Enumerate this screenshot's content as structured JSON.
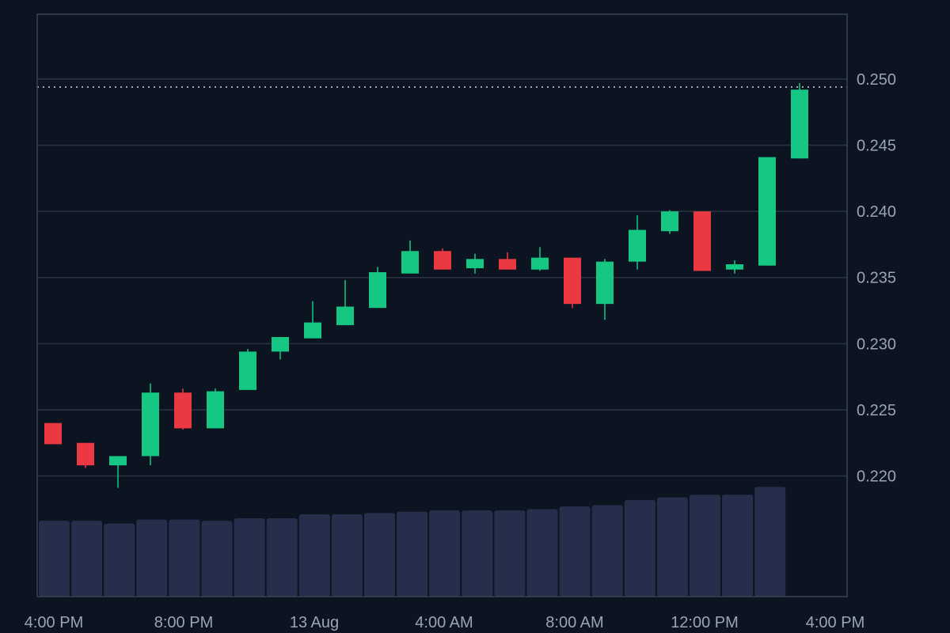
{
  "chart_data": {
    "type": "candlestick",
    "title": "",
    "xlabel": "",
    "ylabel": "",
    "y_ticks": [
      "0.220",
      "0.225",
      "0.230",
      "0.235",
      "0.240",
      "0.245",
      "0.250"
    ],
    "x_ticks": [
      "4:00 PM",
      "8:00 PM",
      "13 Aug",
      "4:00 AM",
      "8:00 AM",
      "12:00 PM",
      "4:00 PM"
    ],
    "ylim": [
      0.2171,
      0.2549
    ],
    "grid": true,
    "current_price_line": 0.2494,
    "colors": {
      "up": "#16c784",
      "down": "#ea3943",
      "volume": "#252f4b",
      "grid": "#2a3342",
      "background": "#0d1421"
    },
    "candles": [
      {
        "open": 0.224,
        "high": 0.224,
        "low": 0.2224,
        "close": 0.2224
      },
      {
        "open": 0.2225,
        "high": 0.2225,
        "low": 0.2206,
        "close": 0.2208
      },
      {
        "open": 0.2208,
        "high": 0.2215,
        "low": 0.2191,
        "close": 0.2215
      },
      {
        "open": 0.2215,
        "high": 0.227,
        "low": 0.2208,
        "close": 0.2263
      },
      {
        "open": 0.2263,
        "high": 0.2266,
        "low": 0.2235,
        "close": 0.2236
      },
      {
        "open": 0.2236,
        "high": 0.2266,
        "low": 0.2236,
        "close": 0.2264
      },
      {
        "open": 0.2265,
        "high": 0.2296,
        "low": 0.2265,
        "close": 0.2294
      },
      {
        "open": 0.2294,
        "high": 0.2305,
        "low": 0.2288,
        "close": 0.2305
      },
      {
        "open": 0.2304,
        "high": 0.2332,
        "low": 0.2304,
        "close": 0.2316
      },
      {
        "open": 0.2314,
        "high": 0.2348,
        "low": 0.2314,
        "close": 0.2328
      },
      {
        "open": 0.2327,
        "high": 0.2358,
        "low": 0.2327,
        "close": 0.2354
      },
      {
        "open": 0.2353,
        "high": 0.2378,
        "low": 0.2353,
        "close": 0.237
      },
      {
        "open": 0.237,
        "high": 0.2372,
        "low": 0.2356,
        "close": 0.2356
      },
      {
        "open": 0.2357,
        "high": 0.2368,
        "low": 0.2353,
        "close": 0.2364
      },
      {
        "open": 0.2364,
        "high": 0.2369,
        "low": 0.2356,
        "close": 0.2356
      },
      {
        "open": 0.2356,
        "high": 0.2373,
        "low": 0.2355,
        "close": 0.2365
      },
      {
        "open": 0.2365,
        "high": 0.2365,
        "low": 0.2327,
        "close": 0.233
      },
      {
        "open": 0.233,
        "high": 0.2364,
        "low": 0.2318,
        "close": 0.2362
      },
      {
        "open": 0.2362,
        "high": 0.2397,
        "low": 0.2356,
        "close": 0.2386
      },
      {
        "open": 0.2385,
        "high": 0.2401,
        "low": 0.2383,
        "close": 0.24
      },
      {
        "open": 0.24,
        "high": 0.24,
        "low": 0.2355,
        "close": 0.2355
      },
      {
        "open": 0.2356,
        "high": 0.2363,
        "low": 0.2353,
        "close": 0.236
      },
      {
        "open": 0.2359,
        "high": 0.2441,
        "low": 0.2359,
        "close": 0.2441
      },
      {
        "open": 0.244,
        "high": 0.2497,
        "low": 0.244,
        "close": 0.2492
      }
    ],
    "volume_levels": [
      0.58,
      0.58,
      0.56,
      0.59,
      0.59,
      0.58,
      0.6,
      0.6,
      0.63,
      0.63,
      0.64,
      0.65,
      0.66,
      0.66,
      0.66,
      0.67,
      0.69,
      0.7,
      0.74,
      0.76,
      0.78,
      0.78,
      0.84
    ]
  }
}
